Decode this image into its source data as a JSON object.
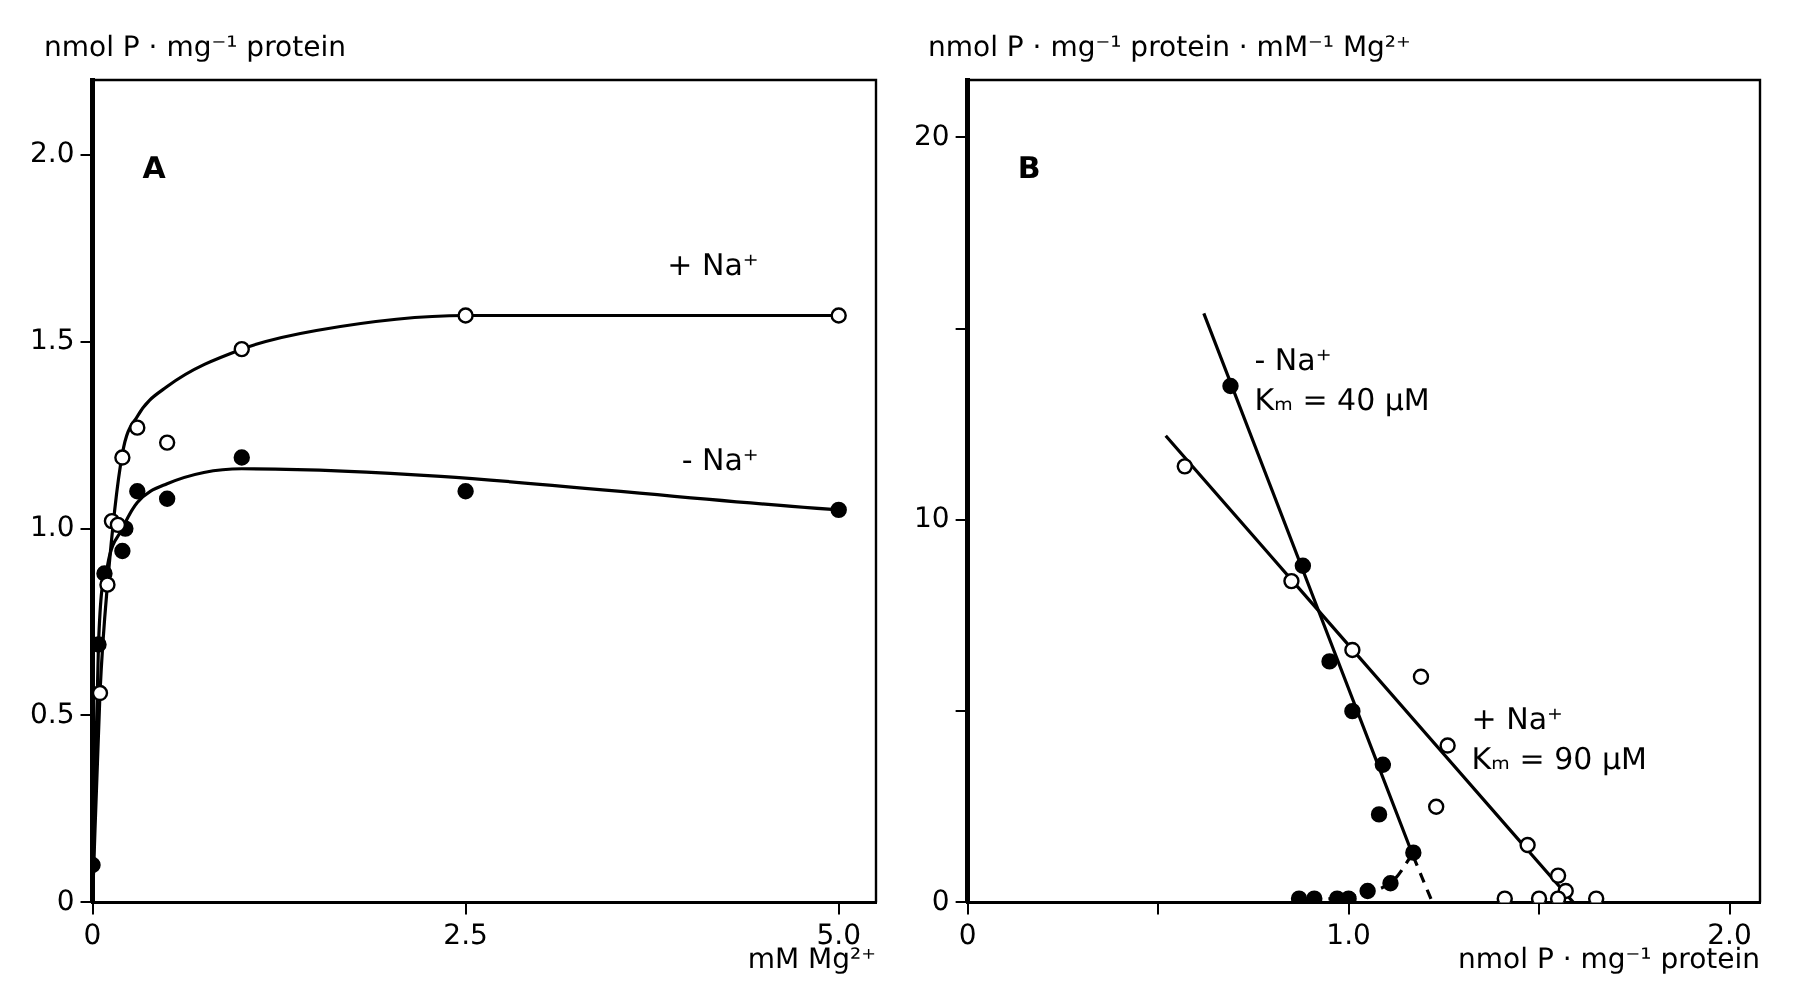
{
  "chart_data": [
    {
      "type": "scatter",
      "xlabel": "mM Mg²⁺",
      "ylabel": "nmol P · mg⁻¹ protein",
      "xlim": [
        0,
        5.25
      ],
      "ylim": [
        0,
        2.2
      ],
      "xticks": [
        {
          "value": 0,
          "label": "0"
        },
        2.5,
        {
          "value": 5,
          "label": "5.0"
        }
      ],
      "yticks": [
        {
          "value": 0,
          "label": "0"
        },
        0.5,
        {
          "value": 1,
          "label": "1.0"
        },
        1.5,
        {
          "value": 2,
          "label": "2.0"
        }
      ],
      "grid": false,
      "legend": false,
      "annotations": [
        "A",
        {
          "text": "+ Na⁺",
          "x": 5.0,
          "y": 1.57
        },
        {
          "text": "- Na⁺",
          "x": 5.0,
          "y": 1.05
        }
      ],
      "series": [
        {
          "type": "scatter",
          "marker": "circle",
          "color": "#ffffff",
          "x": [
            0.05,
            0.1,
            0.13,
            0.17,
            0.2,
            0.3,
            0.5,
            1.0,
            2.5,
            5.0
          ],
          "values": [
            0.56,
            0.85,
            1.02,
            1.01,
            1.19,
            1.27,
            1.23,
            1.48,
            1.57,
            1.57
          ]
        },
        {
          "type": "scatter",
          "marker": "circle",
          "color": "#000000",
          "x": [
            0,
            0.04,
            0.08,
            0.2,
            0.22,
            0.3,
            0.5,
            1.0,
            2.5,
            5.0
          ],
          "values": [
            0.1,
            0.69,
            0.88,
            0.94,
            1.0,
            1.1,
            1.08,
            1.19,
            1.1,
            1.05
          ]
        },
        {
          "type": "line",
          "marker": "none",
          "color": "#000000",
          "x": [
            0,
            0.05,
            0.1,
            0.2,
            0.3,
            0.5,
            1.0,
            1.5,
            2.5,
            5.0
          ],
          "values": [
            0,
            0.56,
            0.85,
            1.2,
            1.3,
            1.38,
            1.48,
            1.53,
            1.57,
            1.57
          ]
        },
        {
          "type": "line",
          "marker": "none",
          "color": "#000000",
          "x": [
            0,
            0.04,
            0.1,
            0.2,
            0.3,
            0.5,
            1.0,
            5.0
          ],
          "values": [
            0,
            0.69,
            0.9,
            1.0,
            1.07,
            1.12,
            1.16,
            1.05
          ]
        }
      ]
    },
    {
      "type": "scatter",
      "xlabel": "nmol P · mg⁻¹ protein",
      "ylabel": "nmol P · mg⁻¹ protein · mM⁻¹ Mg²⁺",
      "xlim": [
        0,
        2.08
      ],
      "ylim": [
        0,
        21.5
      ],
      "xticks": [
        {
          "value": 0,
          "label": "0"
        },
        {
          "value": 0.5,
          "label": null
        },
        {
          "value": 1,
          "label": "1.0"
        },
        {
          "value": 1.5,
          "label": null
        },
        {
          "value": 2,
          "label": "2.0"
        }
      ],
      "yticks": [
        {
          "value": 0,
          "label": "0"
        },
        {
          "value": 5,
          "label": null
        },
        10,
        {
          "value": 15,
          "label": null
        },
        20
      ],
      "grid": false,
      "legend": false,
      "annotations": [
        "B",
        {
          "text": "- Na⁺\nKₘ = 40 µM",
          "x": 0.69,
          "y": 13.5
        },
        {
          "text": "+ Na⁺\nKₘ = 90 µM",
          "x": 1.26,
          "y": 4.1
        }
      ],
      "series": [
        {
          "type": "scatter",
          "marker": "circle",
          "color": "#000000",
          "x": [
            0.69,
            0.88,
            0.95,
            1.01,
            1.09,
            1.08,
            1.17,
            1.11,
            1.05,
            1.0,
            0.97,
            0.91,
            0.87
          ],
          "values": [
            13.5,
            8.8,
            6.3,
            5.0,
            3.6,
            2.3,
            1.3,
            0.5,
            0.3,
            0.1,
            0.1,
            0.1,
            0.1
          ]
        },
        {
          "type": "scatter",
          "marker": "circle",
          "color": "#ffffff",
          "x": [
            0.57,
            0.85,
            1.01,
            1.19,
            1.26,
            1.23,
            1.47,
            1.55,
            1.57,
            1.55,
            1.5,
            1.41,
            1.65
          ],
          "values": [
            11.4,
            8.4,
            6.6,
            5.9,
            4.1,
            2.5,
            1.5,
            0.7,
            0.3,
            0.1,
            0.1,
            0.1,
            0.1
          ]
        },
        {
          "type": "line",
          "marker": "none",
          "color": "#000000",
          "x": [
            0.62,
            1.17
          ],
          "values": [
            15.4,
            1.2
          ]
        },
        {
          "type": "line",
          "marker": "none",
          "line_style": "dashed",
          "color": "#000000",
          "x": [
            1.17,
            1.22
          ],
          "values": [
            1.2,
            0
          ]
        },
        {
          "type": "line",
          "marker": "none",
          "line_style": "dashed",
          "color": "#000000",
          "x": [
            0.9,
            1.05,
            1.12,
            1.17
          ],
          "values": [
            0.05,
            0.25,
            0.6,
            1.3
          ]
        },
        {
          "type": "line",
          "marker": "none",
          "color": "#000000",
          "x": [
            0.52,
            1.59
          ],
          "values": [
            12.2,
            0
          ]
        }
      ]
    }
  ]
}
